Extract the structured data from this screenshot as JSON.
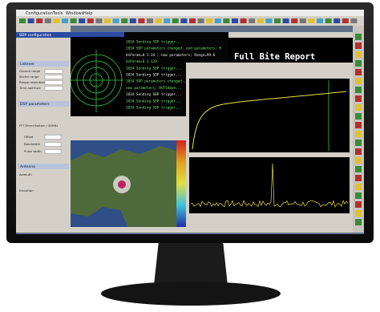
{
  "menu": [
    "Configuration",
    "Tools",
    "Windows",
    "Help"
  ],
  "left_panel": {
    "title": "SDP configuration",
    "listener": {
      "title": "Listener",
      "fields": [
        "Ground range",
        "Sector range",
        "Range resolution",
        "Time aperture"
      ]
    },
    "dsp": {
      "title": "DSP parameters",
      "mode": "FFT Direct Bottom / 50MHz",
      "fields": [
        "Offset",
        "Bandwidth",
        "Pulse width"
      ]
    },
    "antenna": {
      "title": "Antenna",
      "fields": [
        "Azimuth",
        "Elevation"
      ]
    }
  },
  "console": {
    "lines": [
      "1034 Sending SDP trigger...",
      "1034 SDP parameters changed, and parameters: R",
      "dsParam=0 1.34 ; new parameters; Range=99.0",
      "dsParam=0 1.128",
      "1034 Sending SDP trigger...",
      "1034 Sending SDP trigger...",
      "1034 SDP parameters changed...",
      "new parameters; RVFSdbwe...",
      "1034 Sending SDP trigger...",
      "1034 Sending SDP trigger...",
      "1034 Sending SDP trigger..."
    ]
  },
  "report": {
    "title": "Full Bite Report"
  }
}
